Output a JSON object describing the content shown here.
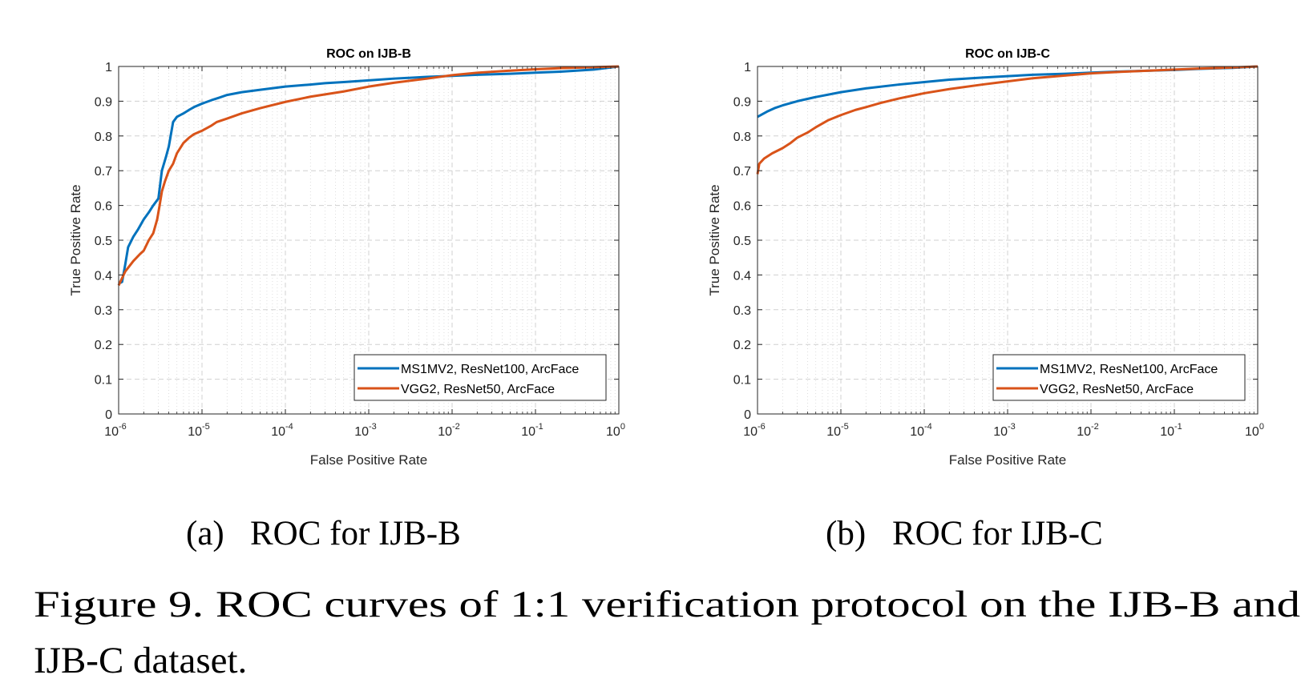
{
  "chart_data": [
    {
      "type": "line",
      "title": "ROC on IJB-B",
      "xlabel": "False Positive Rate",
      "ylabel": "True Positive Rate",
      "xscale": "log",
      "xlim": [
        1e-06,
        1
      ],
      "ylim": [
        0,
        1
      ],
      "xticks": [
        {
          "base": "10",
          "exp": "-6"
        },
        {
          "base": "10",
          "exp": "-5"
        },
        {
          "base": "10",
          "exp": "-4"
        },
        {
          "base": "10",
          "exp": "-3"
        },
        {
          "base": "10",
          "exp": "-2"
        },
        {
          "base": "10",
          "exp": "-1"
        },
        {
          "base": "10",
          "exp": "0"
        }
      ],
      "yticks": [
        "0",
        "0.1",
        "0.2",
        "0.3",
        "0.4",
        "0.5",
        "0.6",
        "0.7",
        "0.8",
        "0.9",
        "1"
      ],
      "grid": true,
      "legend_position": "bottom-right",
      "series": [
        {
          "name": "MS1MV2, ResNet100, ArcFace",
          "color": "#0072BD",
          "x": [
            1e-06,
            1.1e-06,
            1.2e-06,
            1.3e-06,
            1.5e-06,
            1.7e-06,
            2e-06,
            2.3e-06,
            2.6e-06,
            3e-06,
            3.3e-06,
            3.7e-06,
            4e-06,
            4.5e-06,
            5e-06,
            6e-06,
            7e-06,
            8e-06,
            1e-05,
            1.3e-05,
            1.6e-05,
            2e-05,
            3e-05,
            5e-05,
            0.0001,
            0.0002,
            0.0003,
            0.0005,
            0.001,
            0.002,
            0.005,
            0.01,
            0.02,
            0.05,
            0.1,
            0.2,
            0.5,
            1
          ],
          "y": [
            0.375,
            0.38,
            0.43,
            0.48,
            0.51,
            0.53,
            0.56,
            0.58,
            0.6,
            0.62,
            0.7,
            0.74,
            0.77,
            0.84,
            0.855,
            0.865,
            0.875,
            0.883,
            0.893,
            0.903,
            0.91,
            0.918,
            0.926,
            0.933,
            0.942,
            0.948,
            0.952,
            0.955,
            0.96,
            0.965,
            0.97,
            0.973,
            0.976,
            0.979,
            0.982,
            0.985,
            0.991,
            1.0
          ]
        },
        {
          "name": "VGG2, ResNet50, ArcFace",
          "color": "#D95319",
          "x": [
            1e-06,
            1.2e-06,
            1.5e-06,
            1.8e-06,
            2e-06,
            2.3e-06,
            2.6e-06,
            2.9e-06,
            3.1e-06,
            3.3e-06,
            3.6e-06,
            4e-06,
            4.5e-06,
            5e-06,
            6e-06,
            7e-06,
            8e-06,
            1e-05,
            1.3e-05,
            1.5e-05,
            2e-05,
            3e-05,
            5e-05,
            0.0001,
            0.0002,
            0.0005,
            0.001,
            0.002,
            0.005,
            0.01,
            0.02,
            0.05,
            0.1,
            0.2,
            0.5,
            1
          ],
          "y": [
            0.37,
            0.41,
            0.44,
            0.46,
            0.47,
            0.5,
            0.52,
            0.56,
            0.6,
            0.64,
            0.67,
            0.7,
            0.72,
            0.75,
            0.78,
            0.795,
            0.805,
            0.815,
            0.83,
            0.84,
            0.85,
            0.865,
            0.88,
            0.898,
            0.913,
            0.928,
            0.942,
            0.953,
            0.965,
            0.975,
            0.982,
            0.988,
            0.992,
            0.995,
            0.998,
            1.0
          ]
        }
      ]
    },
    {
      "type": "line",
      "title": "ROC on IJB-C",
      "xlabel": "False Positive Rate",
      "ylabel": "True Positive Rate",
      "xscale": "log",
      "xlim": [
        1e-06,
        1
      ],
      "ylim": [
        0,
        1
      ],
      "xticks": [
        {
          "base": "10",
          "exp": "-6"
        },
        {
          "base": "10",
          "exp": "-5"
        },
        {
          "base": "10",
          "exp": "-4"
        },
        {
          "base": "10",
          "exp": "-3"
        },
        {
          "base": "10",
          "exp": "-2"
        },
        {
          "base": "10",
          "exp": "-1"
        },
        {
          "base": "10",
          "exp": "0"
        }
      ],
      "yticks": [
        "0",
        "0.1",
        "0.2",
        "0.3",
        "0.4",
        "0.5",
        "0.6",
        "0.7",
        "0.8",
        "0.9",
        "1"
      ],
      "grid": true,
      "legend_position": "bottom-right",
      "series": [
        {
          "name": "MS1MV2, ResNet100, ArcFace",
          "color": "#0072BD",
          "x": [
            1e-06,
            1.3e-06,
            1.6e-06,
            2e-06,
            3e-06,
            5e-06,
            1e-05,
            2e-05,
            5e-05,
            0.0001,
            0.0002,
            0.0005,
            0.001,
            0.002,
            0.005,
            0.01,
            0.02,
            0.05,
            0.1,
            0.2,
            0.5,
            1
          ],
          "y": [
            0.855,
            0.87,
            0.88,
            0.888,
            0.9,
            0.912,
            0.926,
            0.937,
            0.948,
            0.955,
            0.962,
            0.968,
            0.972,
            0.976,
            0.979,
            0.982,
            0.985,
            0.988,
            0.99,
            0.993,
            0.996,
            1.0
          ]
        },
        {
          "name": "VGG2, ResNet50, ArcFace",
          "color": "#D95319",
          "x": [
            1e-06,
            1.05e-06,
            1.2e-06,
            1.5e-06,
            2e-06,
            2.5e-06,
            3e-06,
            4e-06,
            5e-06,
            7e-06,
            1e-05,
            1.5e-05,
            2e-05,
            3e-05,
            5e-05,
            0.0001,
            0.0002,
            0.0005,
            0.001,
            0.002,
            0.005,
            0.01,
            0.02,
            0.05,
            0.1,
            0.2,
            0.5,
            1
          ],
          "y": [
            0.69,
            0.72,
            0.735,
            0.75,
            0.765,
            0.78,
            0.795,
            0.81,
            0.825,
            0.845,
            0.86,
            0.875,
            0.883,
            0.895,
            0.908,
            0.923,
            0.935,
            0.948,
            0.957,
            0.966,
            0.974,
            0.98,
            0.984,
            0.988,
            0.991,
            0.994,
            0.997,
            1.0
          ]
        }
      ]
    }
  ],
  "subcaptions": [
    {
      "label": "(a)",
      "text": "ROC for IJB-B"
    },
    {
      "label": "(b)",
      "text": "ROC for IJB-C"
    }
  ],
  "caption": {
    "line1": "Figure 9. ROC curves of 1:1 verification protocol on the IJB-B and",
    "line2": "IJB-C dataset."
  }
}
